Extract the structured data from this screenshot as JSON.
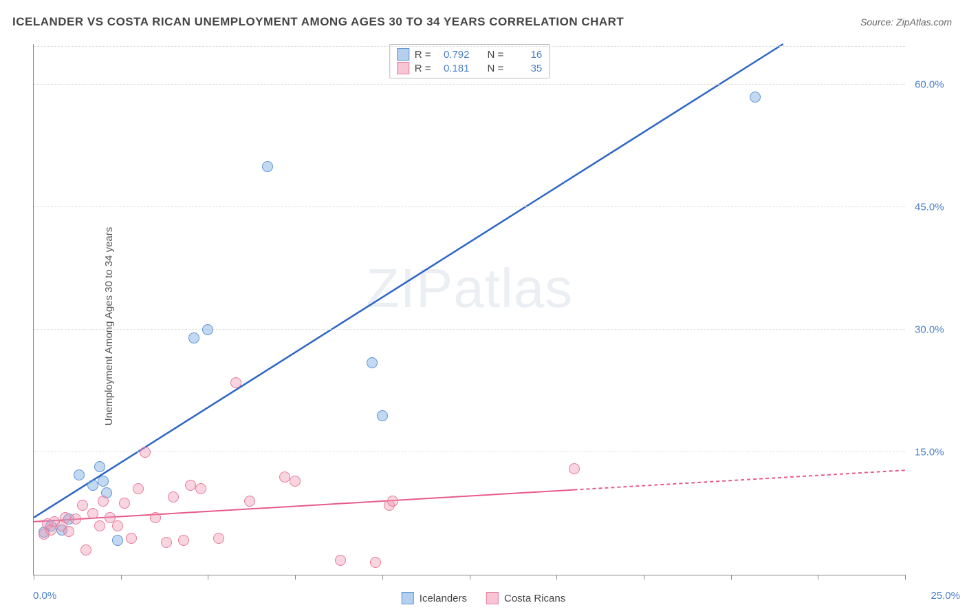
{
  "title": "ICELANDER VS COSTA RICAN UNEMPLOYMENT AMONG AGES 30 TO 34 YEARS CORRELATION CHART",
  "source": "Source: ZipAtlas.com",
  "ylabel": "Unemployment Among Ages 30 to 34 years",
  "watermark_bold": "ZIP",
  "watermark_thin": "atlas",
  "chart": {
    "type": "scatter",
    "xlim": [
      0,
      25
    ],
    "ylim": [
      0,
      65
    ],
    "x_origin_label": "0.0%",
    "x_max_label": "25.0%",
    "y_ticks": [
      {
        "v": 15,
        "label": "15.0%"
      },
      {
        "v": 30,
        "label": "30.0%"
      },
      {
        "v": 45,
        "label": "45.0%"
      },
      {
        "v": 60,
        "label": "60.0%"
      }
    ],
    "x_tick_positions": [
      0,
      2.5,
      5,
      7.5,
      10,
      12.5,
      15,
      17.5,
      20,
      22.5,
      25
    ],
    "grid_color": "#dddddd",
    "axis_color": "#888888",
    "background_color": "#ffffff",
    "series": [
      {
        "id": "icelanders",
        "label": "Icelanders",
        "marker_fill": "rgba(120,170,225,0.45)",
        "marker_stroke": "#5d94d6",
        "marker_size": 16,
        "stats": {
          "R": "0.792",
          "N": "16"
        },
        "trend": {
          "color": "#2d66c4",
          "width": 2.5,
          "p0": {
            "x": 0,
            "y": 7
          },
          "p1": {
            "x": 21.5,
            "y": 65
          },
          "dash_from_x": null
        },
        "points": [
          {
            "x": 0.3,
            "y": 5.2
          },
          {
            "x": 0.5,
            "y": 6.0
          },
          {
            "x": 0.8,
            "y": 5.5
          },
          {
            "x": 1.0,
            "y": 6.8
          },
          {
            "x": 1.3,
            "y": 12.2
          },
          {
            "x": 1.7,
            "y": 11.0
          },
          {
            "x": 1.9,
            "y": 13.2
          },
          {
            "x": 2.0,
            "y": 11.5
          },
          {
            "x": 2.1,
            "y": 10.0
          },
          {
            "x": 2.4,
            "y": 4.2
          },
          {
            "x": 4.6,
            "y": 29.0
          },
          {
            "x": 5.0,
            "y": 30.0
          },
          {
            "x": 6.7,
            "y": 50.0
          },
          {
            "x": 9.7,
            "y": 26.0
          },
          {
            "x": 10.0,
            "y": 19.5
          },
          {
            "x": 20.7,
            "y": 58.5
          }
        ]
      },
      {
        "id": "costa_ricans",
        "label": "Costa Ricans",
        "marker_fill": "rgba(240,150,175,0.40)",
        "marker_stroke": "#e77b9e",
        "marker_size": 16,
        "stats": {
          "R": "0.181",
          "N": "35"
        },
        "trend": {
          "color": "#e65a8a",
          "width": 2,
          "p0": {
            "x": 0,
            "y": 6.5
          },
          "p1": {
            "x": 25,
            "y": 12.8
          },
          "dash_from_x": 15.5
        },
        "points": [
          {
            "x": 0.3,
            "y": 5.0
          },
          {
            "x": 0.4,
            "y": 6.2
          },
          {
            "x": 0.5,
            "y": 5.5
          },
          {
            "x": 0.6,
            "y": 6.5
          },
          {
            "x": 0.8,
            "y": 6.0
          },
          {
            "x": 0.9,
            "y": 7.0
          },
          {
            "x": 1.0,
            "y": 5.3
          },
          {
            "x": 1.2,
            "y": 6.8
          },
          {
            "x": 1.4,
            "y": 8.5
          },
          {
            "x": 1.5,
            "y": 3.0
          },
          {
            "x": 1.7,
            "y": 7.5
          },
          {
            "x": 1.9,
            "y": 6.0
          },
          {
            "x": 2.0,
            "y": 9.0
          },
          {
            "x": 2.2,
            "y": 7.0
          },
          {
            "x": 2.4,
            "y": 6.0
          },
          {
            "x": 2.6,
            "y": 8.8
          },
          {
            "x": 2.8,
            "y": 4.5
          },
          {
            "x": 3.0,
            "y": 10.5
          },
          {
            "x": 3.2,
            "y": 15.0
          },
          {
            "x": 3.5,
            "y": 7.0
          },
          {
            "x": 3.8,
            "y": 4.0
          },
          {
            "x": 4.0,
            "y": 9.5
          },
          {
            "x": 4.3,
            "y": 4.2
          },
          {
            "x": 4.5,
            "y": 11.0
          },
          {
            "x": 4.8,
            "y": 10.5
          },
          {
            "x": 5.3,
            "y": 4.5
          },
          {
            "x": 5.8,
            "y": 23.5
          },
          {
            "x": 6.2,
            "y": 9.0
          },
          {
            "x": 7.2,
            "y": 12.0
          },
          {
            "x": 7.5,
            "y": 11.5
          },
          {
            "x": 8.8,
            "y": 1.8
          },
          {
            "x": 9.8,
            "y": 1.5
          },
          {
            "x": 10.2,
            "y": 8.5
          },
          {
            "x": 10.3,
            "y": 9.0
          },
          {
            "x": 15.5,
            "y": 13.0
          }
        ]
      }
    ]
  },
  "legend_stats_labels": {
    "R": "R =",
    "N": "N ="
  },
  "bottom_legend_items": [
    "Icelanders",
    "Costa Ricans"
  ]
}
